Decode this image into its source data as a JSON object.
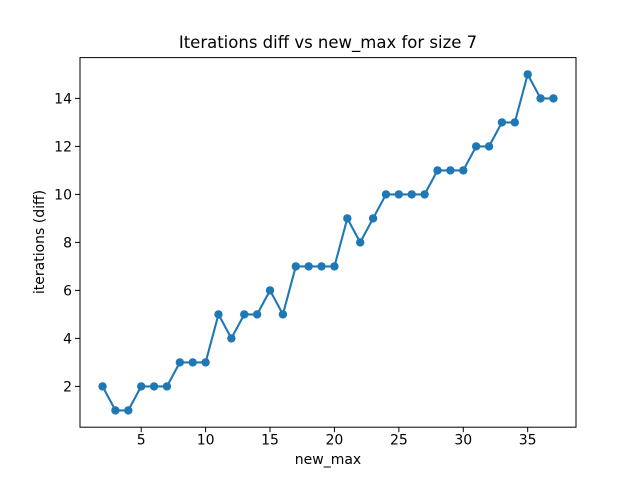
{
  "chart_data": {
    "type": "line",
    "title": "Iterations diff vs new_max for size 7",
    "xlabel": "new_max",
    "ylabel": "iterations (diff)",
    "x": [
      2,
      3,
      4,
      5,
      6,
      7,
      8,
      9,
      10,
      11,
      12,
      13,
      14,
      15,
      16,
      17,
      18,
      19,
      20,
      21,
      22,
      23,
      24,
      25,
      26,
      27,
      28,
      29,
      30,
      31,
      32,
      33,
      34,
      35,
      36,
      37
    ],
    "y": [
      2,
      1,
      1,
      2,
      2,
      2,
      3,
      3,
      3,
      5,
      4,
      5,
      5,
      6,
      5,
      7,
      7,
      7,
      7,
      9,
      8,
      9,
      10,
      10,
      10,
      10,
      11,
      11,
      11,
      12,
      12,
      13,
      13,
      15,
      14,
      14
    ],
    "xlim": [
      0.25,
      38.75
    ],
    "ylim": [
      0.3,
      15.7
    ],
    "xticks": [
      5,
      10,
      15,
      20,
      25,
      30,
      35
    ],
    "yticks": [
      2,
      4,
      6,
      8,
      10,
      12,
      14
    ],
    "grid": false,
    "legend": null,
    "line_color": "#1f77b4",
    "marker": "o",
    "axis_color": "#000000",
    "background": "#ffffff"
  }
}
